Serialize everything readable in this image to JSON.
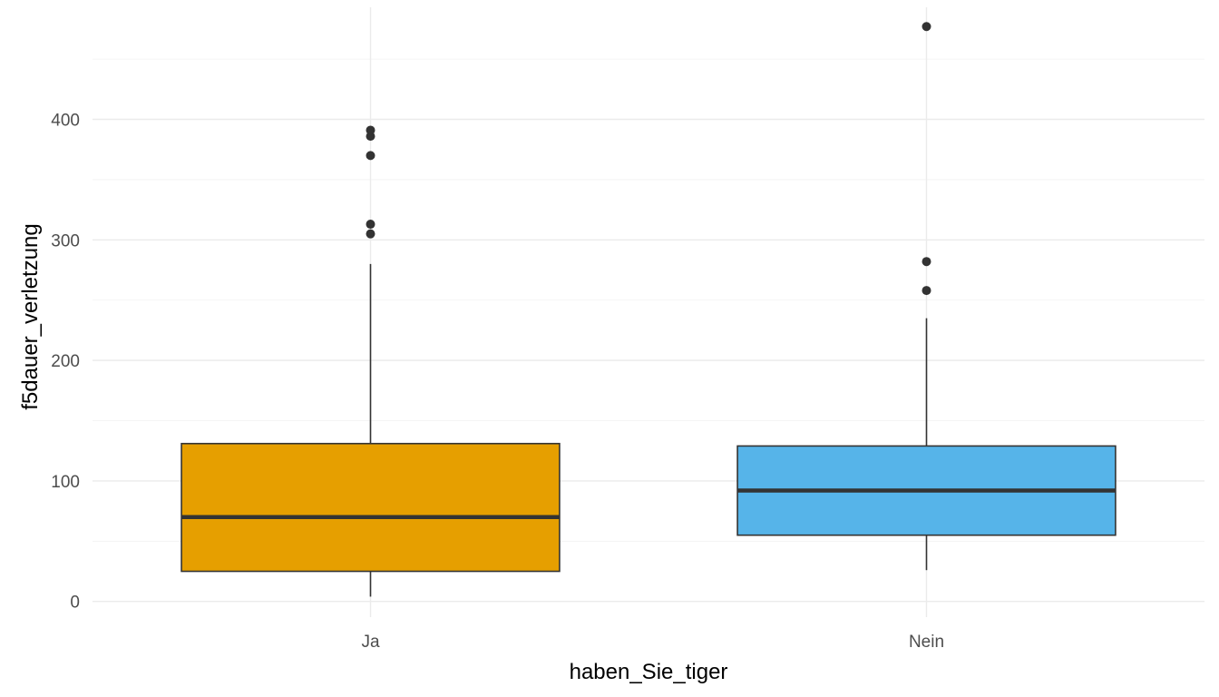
{
  "chart_data": {
    "type": "boxplot",
    "title": "",
    "xlabel": "haben_Sie_tiger",
    "ylabel": "f5dauer_verletzung",
    "categories": [
      "Ja",
      "Nein"
    ],
    "ylim": [
      -13,
      493
    ],
    "yticks": [
      0,
      100,
      200,
      300,
      400
    ],
    "grid": true,
    "legend": "none",
    "boxes": [
      {
        "category": "Ja",
        "color": "#E69F00",
        "lower_whisker": 4,
        "q1": 25,
        "median": 70,
        "q3": 131,
        "upper_whisker": 280,
        "outliers": [
          305,
          313,
          370,
          386,
          391
        ]
      },
      {
        "category": "Nein",
        "color": "#56B4E9",
        "lower_whisker": 26,
        "q1": 55,
        "median": 92,
        "q3": 129,
        "upper_whisker": 235,
        "outliers": [
          258,
          282,
          477
        ]
      }
    ]
  }
}
